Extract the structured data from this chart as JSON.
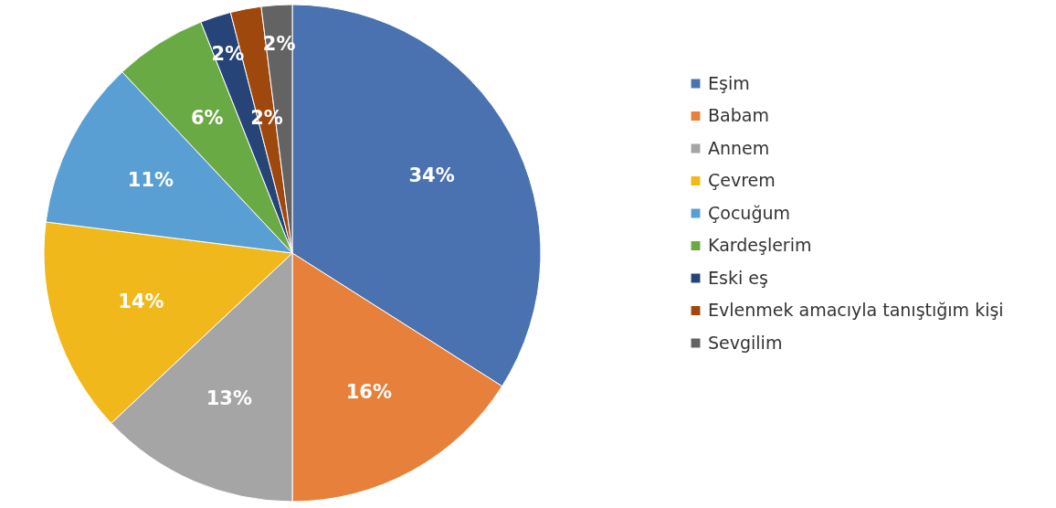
{
  "chart_data": {
    "type": "pie",
    "categories": [
      "Eşim",
      "Babam",
      "Annem",
      "Çevrem",
      "Çocuğum",
      "Kardeşlerim",
      "Eski eş",
      "Evlenmek amacıyla tanıştığım kişi",
      "Sevgilim"
    ],
    "values": [
      34,
      16,
      13,
      14,
      11,
      6,
      2,
      2,
      2
    ],
    "colors": [
      "#4a72b0",
      "#e7803a",
      "#a5a5a5",
      "#f0b81a",
      "#5a9fd4",
      "#6aaa45",
      "#264478",
      "#9e480e",
      "#636363"
    ],
    "value_labels": [
      "34%",
      "16%",
      "13%",
      "14%",
      "11%",
      "6%",
      "2%",
      "2%",
      "2%"
    ],
    "legend": "right"
  }
}
